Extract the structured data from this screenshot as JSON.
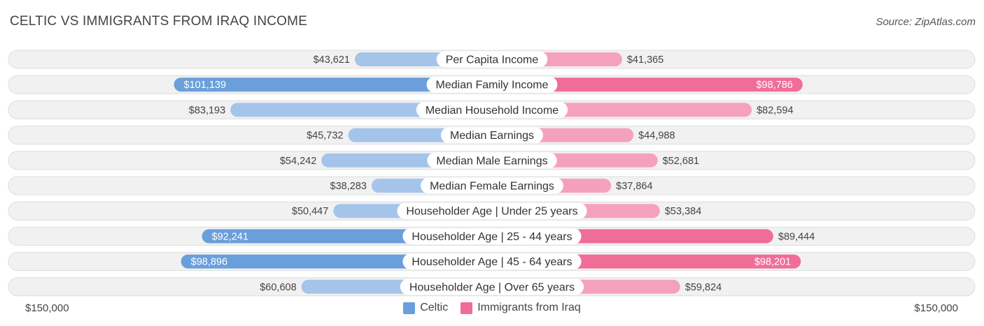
{
  "header": {
    "title": "CELTIC VS IMMIGRANTS FROM IRAQ INCOME",
    "source": "Source: ZipAtlas.com"
  },
  "colors": {
    "left_strong": "#6a9fdc",
    "left_light": "#a5c4ea",
    "right_strong": "#f06d97",
    "right_light": "#f5a1bd",
    "row_bg": "#f1f1f1",
    "row_border": "#dedede"
  },
  "chart_data": {
    "type": "bar",
    "orientation": "horizontal-diverging",
    "title": "CELTIC VS IMMIGRANTS FROM IRAQ INCOME",
    "xlim": [
      0,
      150000
    ],
    "axis_labels": {
      "left": "$150,000",
      "right": "$150,000"
    },
    "legend_position": "bottom-center",
    "categories": [
      "Per Capita Income",
      "Median Family Income",
      "Median Household Income",
      "Median Earnings",
      "Median Male Earnings",
      "Median Female Earnings",
      "Householder Age | Under 25 years",
      "Householder Age | 25 - 44 years",
      "Householder Age | 45 - 64 years",
      "Householder Age | Over 65 years"
    ],
    "series": [
      {
        "name": "Celtic",
        "side": "left",
        "values": [
          43621,
          101139,
          83193,
          45732,
          54242,
          38283,
          50447,
          92241,
          98896,
          60608
        ],
        "labels": [
          "$43,621",
          "$101,139",
          "$83,193",
          "$45,732",
          "$54,242",
          "$38,283",
          "$50,447",
          "$92,241",
          "$98,896",
          "$60,608"
        ]
      },
      {
        "name": "Immigrants from Iraq",
        "side": "right",
        "values": [
          41365,
          98786,
          82594,
          44988,
          52681,
          37864,
          53384,
          89444,
          98201,
          59824
        ],
        "labels": [
          "$41,365",
          "$98,786",
          "$82,594",
          "$44,988",
          "$52,681",
          "$37,864",
          "$53,384",
          "$89,444",
          "$98,201",
          "$59,824"
        ]
      }
    ]
  }
}
